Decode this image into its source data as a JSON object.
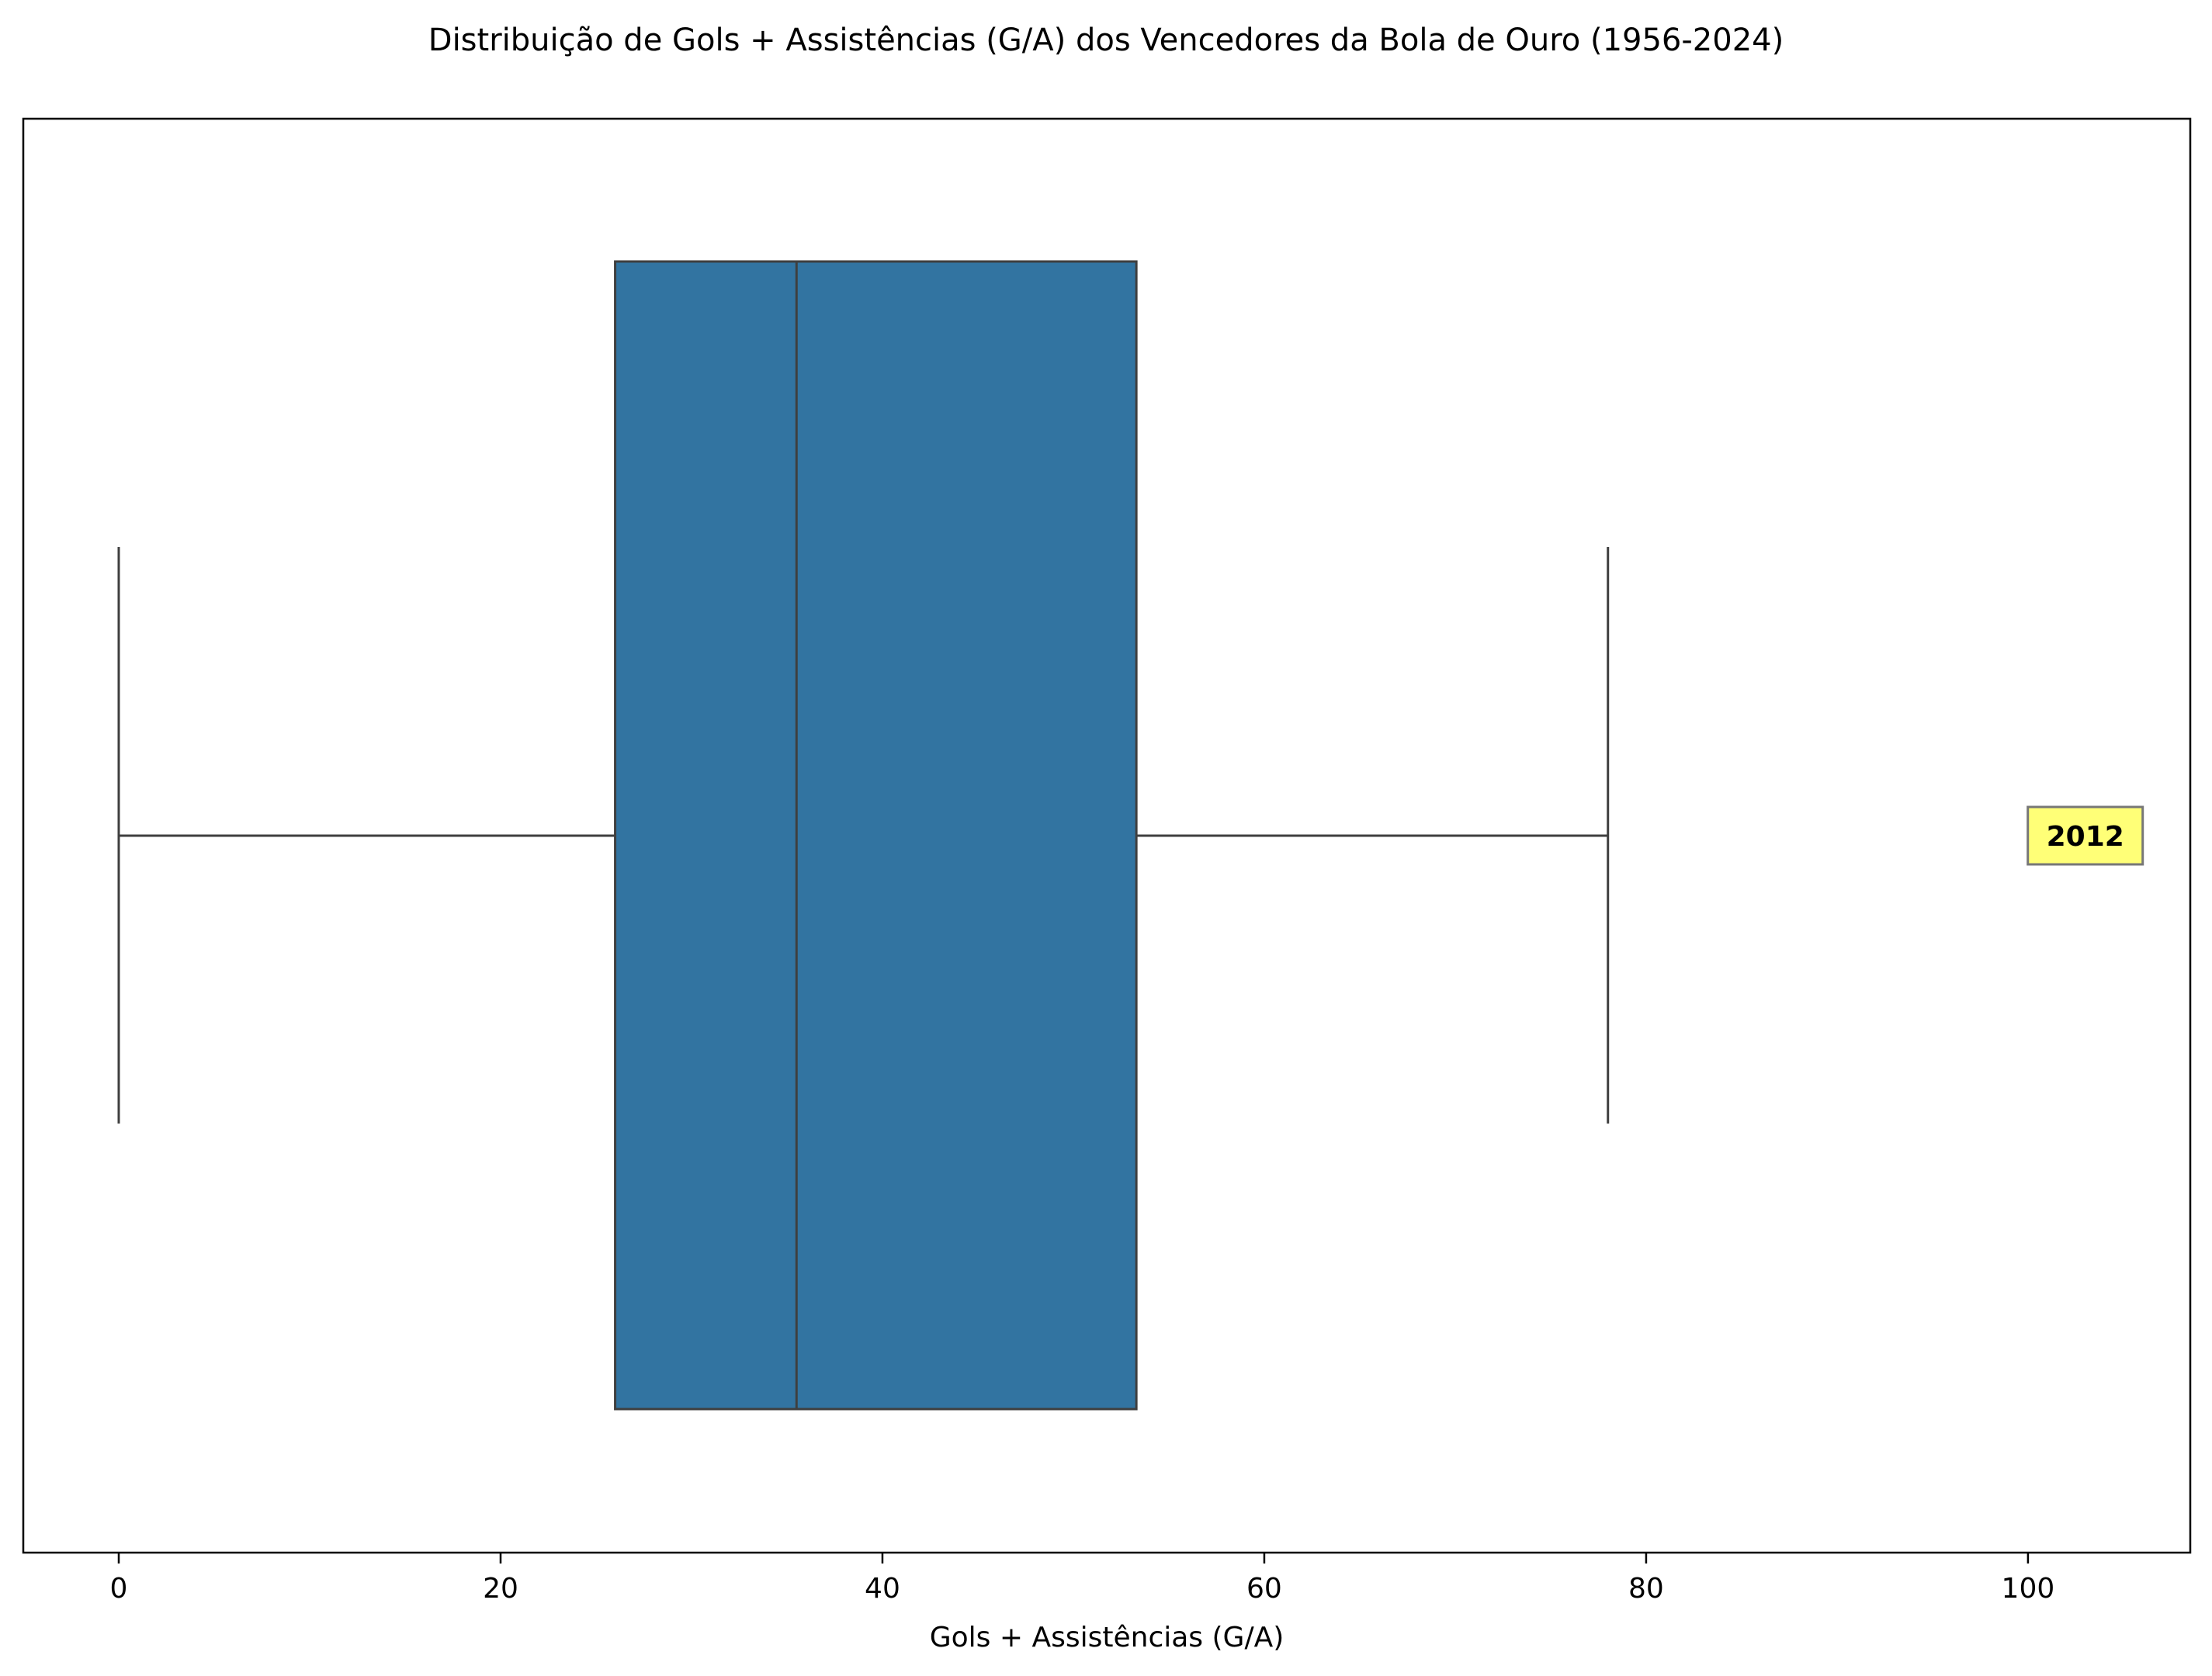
{
  "chart_data": {
    "type": "box",
    "title": "Distribuição de Gols + Assistências (G/A) dos Vencedores da Bola de Ouro (1956-2024)",
    "xlabel": "Gols + Assistências (G/A)",
    "ylabel": "",
    "xlim": [
      -5,
      108.5
    ],
    "xticks": [
      0,
      20,
      40,
      60,
      80,
      100
    ],
    "grid": false,
    "box": {
      "whisker_low": 0,
      "q1": 26,
      "median": 35.5,
      "q3": 53.3,
      "whisker_high": 78
    },
    "outliers": [
      {
        "value": 103,
        "label": "2012"
      }
    ]
  },
  "colors": {
    "box_fill": "#3274a1",
    "box_edge": "#3f3f3f",
    "outlier_label_bg": "#ffff77",
    "axes": "#000000"
  }
}
